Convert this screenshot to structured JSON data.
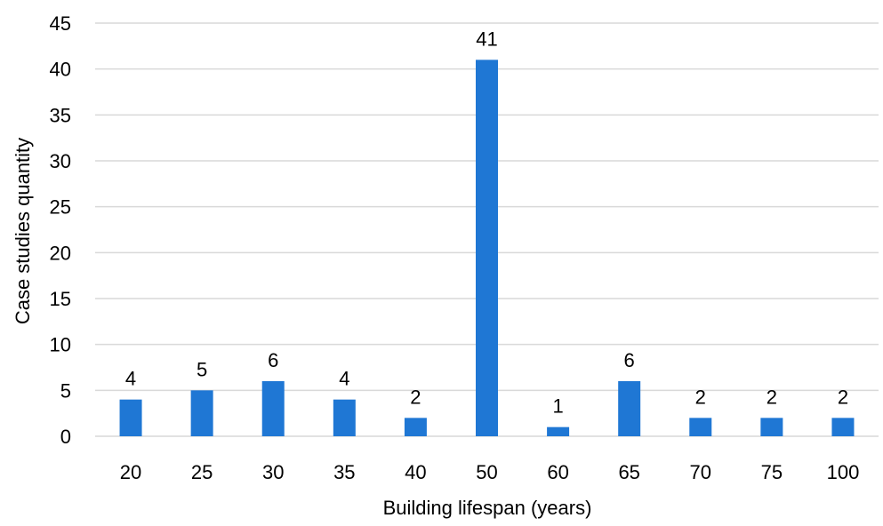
{
  "chart_data": {
    "type": "bar",
    "title": "",
    "xlabel": "Building lifespan (years)",
    "ylabel": "Case studies quantity",
    "categories": [
      "20",
      "25",
      "30",
      "35",
      "40",
      "50",
      "60",
      "65",
      "70",
      "75",
      "100"
    ],
    "values": [
      4,
      5,
      6,
      4,
      2,
      41,
      1,
      6,
      2,
      2,
      2
    ],
    "data_labels": [
      "4",
      "5",
      "6",
      "4",
      "2",
      "41",
      "1",
      "6",
      "2",
      "2",
      "2"
    ],
    "ylim": [
      0,
      45
    ],
    "yticks": [
      "0",
      "5",
      "10",
      "15",
      "20",
      "25",
      "30",
      "35",
      "40",
      "45"
    ],
    "grid": true,
    "legend": "none",
    "bar_color": "#1f77d4",
    "grid_color": "#d9d9d9"
  }
}
